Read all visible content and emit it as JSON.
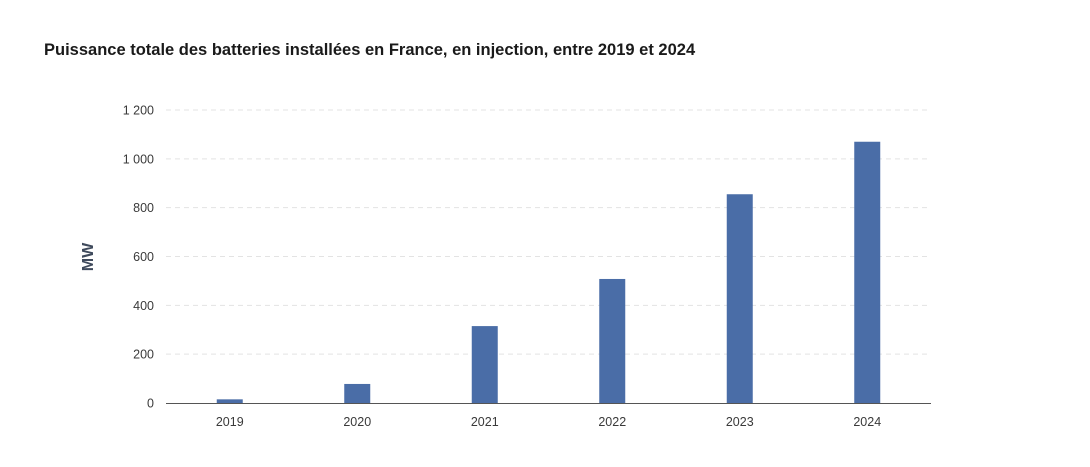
{
  "chart_data": {
    "type": "bar",
    "title": "Puissance totale des batteries installées en France, en injection, entre 2019 et 2024",
    "xlabel": "",
    "ylabel": "MW",
    "categories": [
      "2019",
      "2020",
      "2021",
      "2022",
      "2023",
      "2024"
    ],
    "values": [
      15,
      78,
      315,
      508,
      855,
      1070
    ],
    "ylim": [
      0,
      1200
    ],
    "yticks": [
      {
        "value": 0,
        "label": "0"
      },
      {
        "value": 200,
        "label": "200"
      },
      {
        "value": 400,
        "label": "400"
      },
      {
        "value": 600,
        "label": "600"
      },
      {
        "value": 800,
        "label": "800"
      },
      {
        "value": 1000,
        "label": "1 000"
      },
      {
        "value": 1200,
        "label": "1 200"
      }
    ],
    "grid": true,
    "bar_color": "#4a6da7",
    "grid_color": "#e3e3e3",
    "axis_color": "#555555"
  }
}
